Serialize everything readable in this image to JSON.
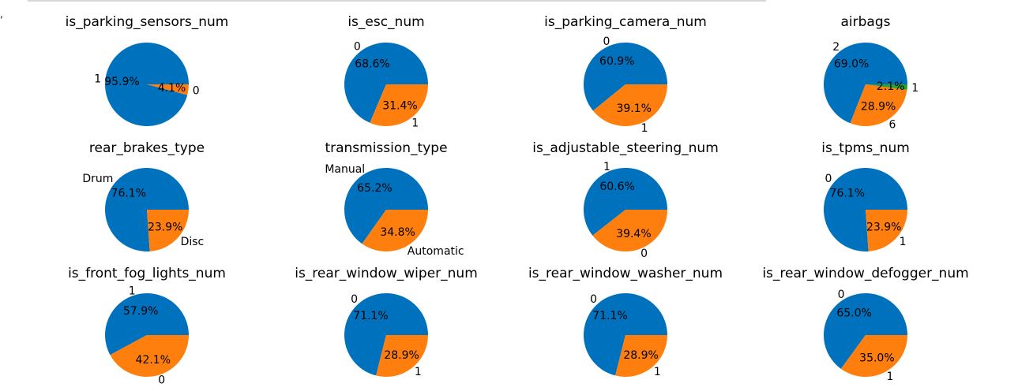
{
  "colors": {
    "c0": "#0072bd",
    "c1": "#ff7f0e",
    "c2": "#2ca02c"
  },
  "chart_data": [
    {
      "type": "pie",
      "title": "is_parking_sensors_num",
      "slices": [
        {
          "label": "1",
          "pct": "95.9%",
          "value": 95.9,
          "color": "#0072bd"
        },
        {
          "label": "0",
          "pct": "4.1%",
          "value": 4.1,
          "color": "#ff7f0e"
        }
      ]
    },
    {
      "type": "pie",
      "title": "is_esc_num",
      "slices": [
        {
          "label": "0",
          "pct": "68.6%",
          "value": 68.6,
          "color": "#0072bd"
        },
        {
          "label": "1",
          "pct": "31.4%",
          "value": 31.4,
          "color": "#ff7f0e"
        }
      ]
    },
    {
      "type": "pie",
      "title": "is_parking_camera_num",
      "slices": [
        {
          "label": "0",
          "pct": "60.9%",
          "value": 60.9,
          "color": "#0072bd"
        },
        {
          "label": "1",
          "pct": "39.1%",
          "value": 39.1,
          "color": "#ff7f0e"
        }
      ]
    },
    {
      "type": "pie",
      "title": "airbags",
      "slices": [
        {
          "label": "2",
          "pct": "69.0%",
          "value": 69.0,
          "color": "#0072bd"
        },
        {
          "label": "6",
          "pct": "28.9%",
          "value": 28.9,
          "color": "#ff7f0e"
        },
        {
          "label": "1",
          "pct": "2.1%",
          "value": 2.1,
          "color": "#2ca02c"
        }
      ]
    },
    {
      "type": "pie",
      "title": "rear_brakes_type",
      "slices": [
        {
          "label": "Drum",
          "pct": "76.1%",
          "value": 76.1,
          "color": "#0072bd"
        },
        {
          "label": "Disc",
          "pct": "23.9%",
          "value": 23.9,
          "color": "#ff7f0e"
        }
      ]
    },
    {
      "type": "pie",
      "title": "transmission_type",
      "slices": [
        {
          "label": "Manual",
          "pct": "65.2%",
          "value": 65.2,
          "color": "#0072bd"
        },
        {
          "label": "Automatic",
          "pct": "34.8%",
          "value": 34.8,
          "color": "#ff7f0e"
        }
      ]
    },
    {
      "type": "pie",
      "title": "is_adjustable_steering_num",
      "slices": [
        {
          "label": "1",
          "pct": "60.6%",
          "value": 60.6,
          "color": "#0072bd"
        },
        {
          "label": "0",
          "pct": "39.4%",
          "value": 39.4,
          "color": "#ff7f0e"
        }
      ]
    },
    {
      "type": "pie",
      "title": "is_tpms_num",
      "slices": [
        {
          "label": "0",
          "pct": "76.1%",
          "value": 76.1,
          "color": "#0072bd"
        },
        {
          "label": "1",
          "pct": "23.9%",
          "value": 23.9,
          "color": "#ff7f0e"
        }
      ]
    },
    {
      "type": "pie",
      "title": "is_front_fog_lights_num",
      "slices": [
        {
          "label": "1",
          "pct": "57.9%",
          "value": 57.9,
          "color": "#0072bd"
        },
        {
          "label": "0",
          "pct": "42.1%",
          "value": 42.1,
          "color": "#ff7f0e"
        }
      ]
    },
    {
      "type": "pie",
      "title": "is_rear_window_wiper_num",
      "slices": [
        {
          "label": "0",
          "pct": "71.1%",
          "value": 71.1,
          "color": "#0072bd"
        },
        {
          "label": "1",
          "pct": "28.9%",
          "value": 28.9,
          "color": "#ff7f0e"
        }
      ]
    },
    {
      "type": "pie",
      "title": "is_rear_window_washer_num",
      "slices": [
        {
          "label": "0",
          "pct": "71.1%",
          "value": 71.1,
          "color": "#0072bd"
        },
        {
          "label": "1",
          "pct": "28.9%",
          "value": 28.9,
          "color": "#ff7f0e"
        }
      ]
    },
    {
      "type": "pie",
      "title": "is_rear_window_defogger_num",
      "slices": [
        {
          "label": "0",
          "pct": "65.0%",
          "value": 65.0,
          "color": "#0072bd"
        },
        {
          "label": "1",
          "pct": "35.0%",
          "value": 35.0,
          "color": "#ff7f0e"
        }
      ]
    }
  ]
}
